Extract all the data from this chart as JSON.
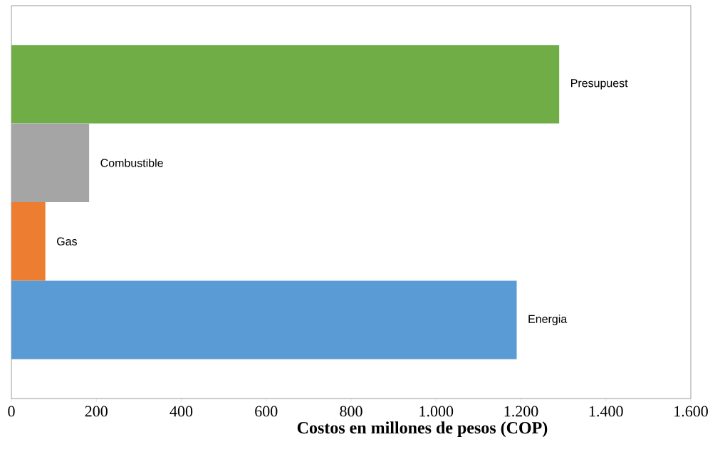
{
  "chart_data": {
    "type": "bar",
    "orientation": "horizontal",
    "categories": [
      "Presupuest",
      "Combustible",
      "Gas",
      "Energia"
    ],
    "values": [
      1290,
      183,
      80,
      1190
    ],
    "colors": [
      "#70ad47",
      "#a5a5a5",
      "#ed7d31",
      "#5b9bd5"
    ],
    "xlabel": "Costos en millones de pesos (COP)",
    "xlim": [
      0,
      1600
    ],
    "xticks": [
      0,
      200,
      400,
      600,
      800,
      {
        "value": 1000,
        "label": "1.000"
      },
      {
        "value": 1200,
        "label": "1.200"
      },
      {
        "value": 1400,
        "label": "1.400"
      },
      {
        "value": 1600,
        "label": "1.600"
      }
    ]
  }
}
